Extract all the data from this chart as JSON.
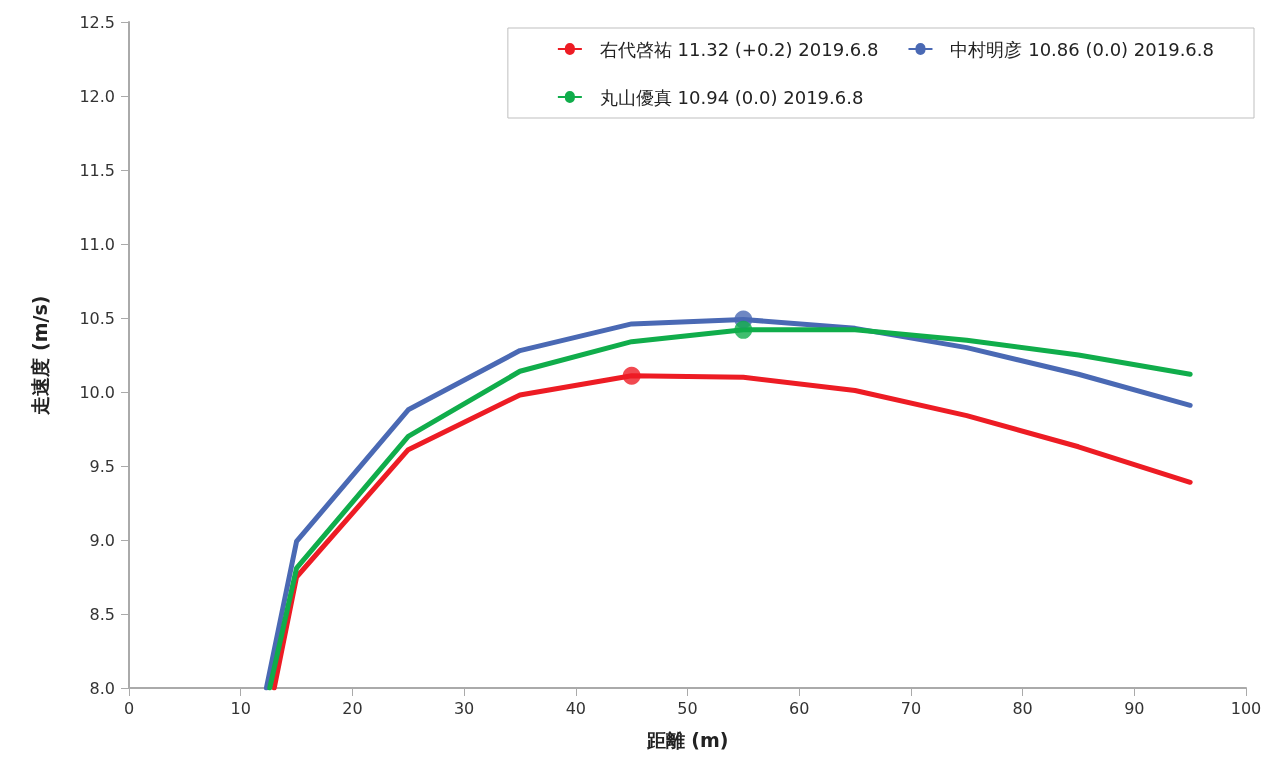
{
  "chart_data": {
    "type": "line",
    "xlabel": "距離 (m)",
    "ylabel": "走速度 (m/s)",
    "xlim": [
      0,
      100
    ],
    "xticks": [
      0,
      10,
      20,
      30,
      40,
      50,
      60,
      70,
      80,
      90,
      100
    ],
    "ylim": [
      8.0,
      12.5
    ],
    "yticks": [
      {
        "value": 8.0,
        "label": "8.0"
      },
      {
        "value": 8.5,
        "label": "8.5"
      },
      {
        "value": 9.0,
        "label": "9.0"
      },
      {
        "value": 9.5,
        "label": "9.5"
      },
      {
        "value": 10.0,
        "label": "10.0"
      },
      {
        "value": 10.5,
        "label": "10.5"
      },
      {
        "value": 11.0,
        "label": "11.0"
      },
      {
        "value": 11.5,
        "label": "11.5"
      },
      {
        "value": 12.0,
        "label": "12.0"
      },
      {
        "value": 12.5,
        "label": "12.5"
      }
    ],
    "grid": false,
    "legend": "top right",
    "marker": "none",
    "line_style": "solid",
    "series": [
      {
        "name": "右代啓祐 11.32 (+0.2) 2019.6.8",
        "color": "#ed1c24",
        "x": [
          13.0,
          15,
          25,
          35,
          45,
          55,
          65,
          75,
          85,
          95
        ],
        "values": [
          8.0,
          8.75,
          9.61,
          9.98,
          10.11,
          10.1,
          10.01,
          9.84,
          9.63,
          9.39
        ]
      },
      {
        "name": "中村明彦 10.86 (0.0) 2019.6.8",
        "color": "#4a69b4",
        "x": [
          12.3,
          15,
          25,
          35,
          45,
          55,
          65,
          75,
          85,
          95
        ],
        "values": [
          8.0,
          8.99,
          9.88,
          10.28,
          10.46,
          10.49,
          10.43,
          10.3,
          10.12,
          9.91
        ]
      },
      {
        "name": "丸山優真 10.94 (0.0) 2019.6.8",
        "color": "#10ad4b",
        "x": [
          12.6,
          15,
          25,
          35,
          45,
          55,
          65,
          75,
          85,
          95
        ],
        "values": [
          8.0,
          8.81,
          9.7,
          10.14,
          10.34,
          10.42,
          10.42,
          10.35,
          10.25,
          10.12
        ]
      },
      {
        "type": "scatter",
        "marker": "circle",
        "color": "#ed1c24",
        "x": [
          45
        ],
        "values": [
          10.11
        ]
      },
      {
        "type": "scatter",
        "marker": "circle",
        "color": "#4a69b4",
        "x": [
          55
        ],
        "values": [
          10.49
        ]
      },
      {
        "type": "scatter",
        "marker": "circle",
        "color": "#10ad4b",
        "x": [
          55
        ],
        "values": [
          10.42
        ]
      }
    ]
  }
}
